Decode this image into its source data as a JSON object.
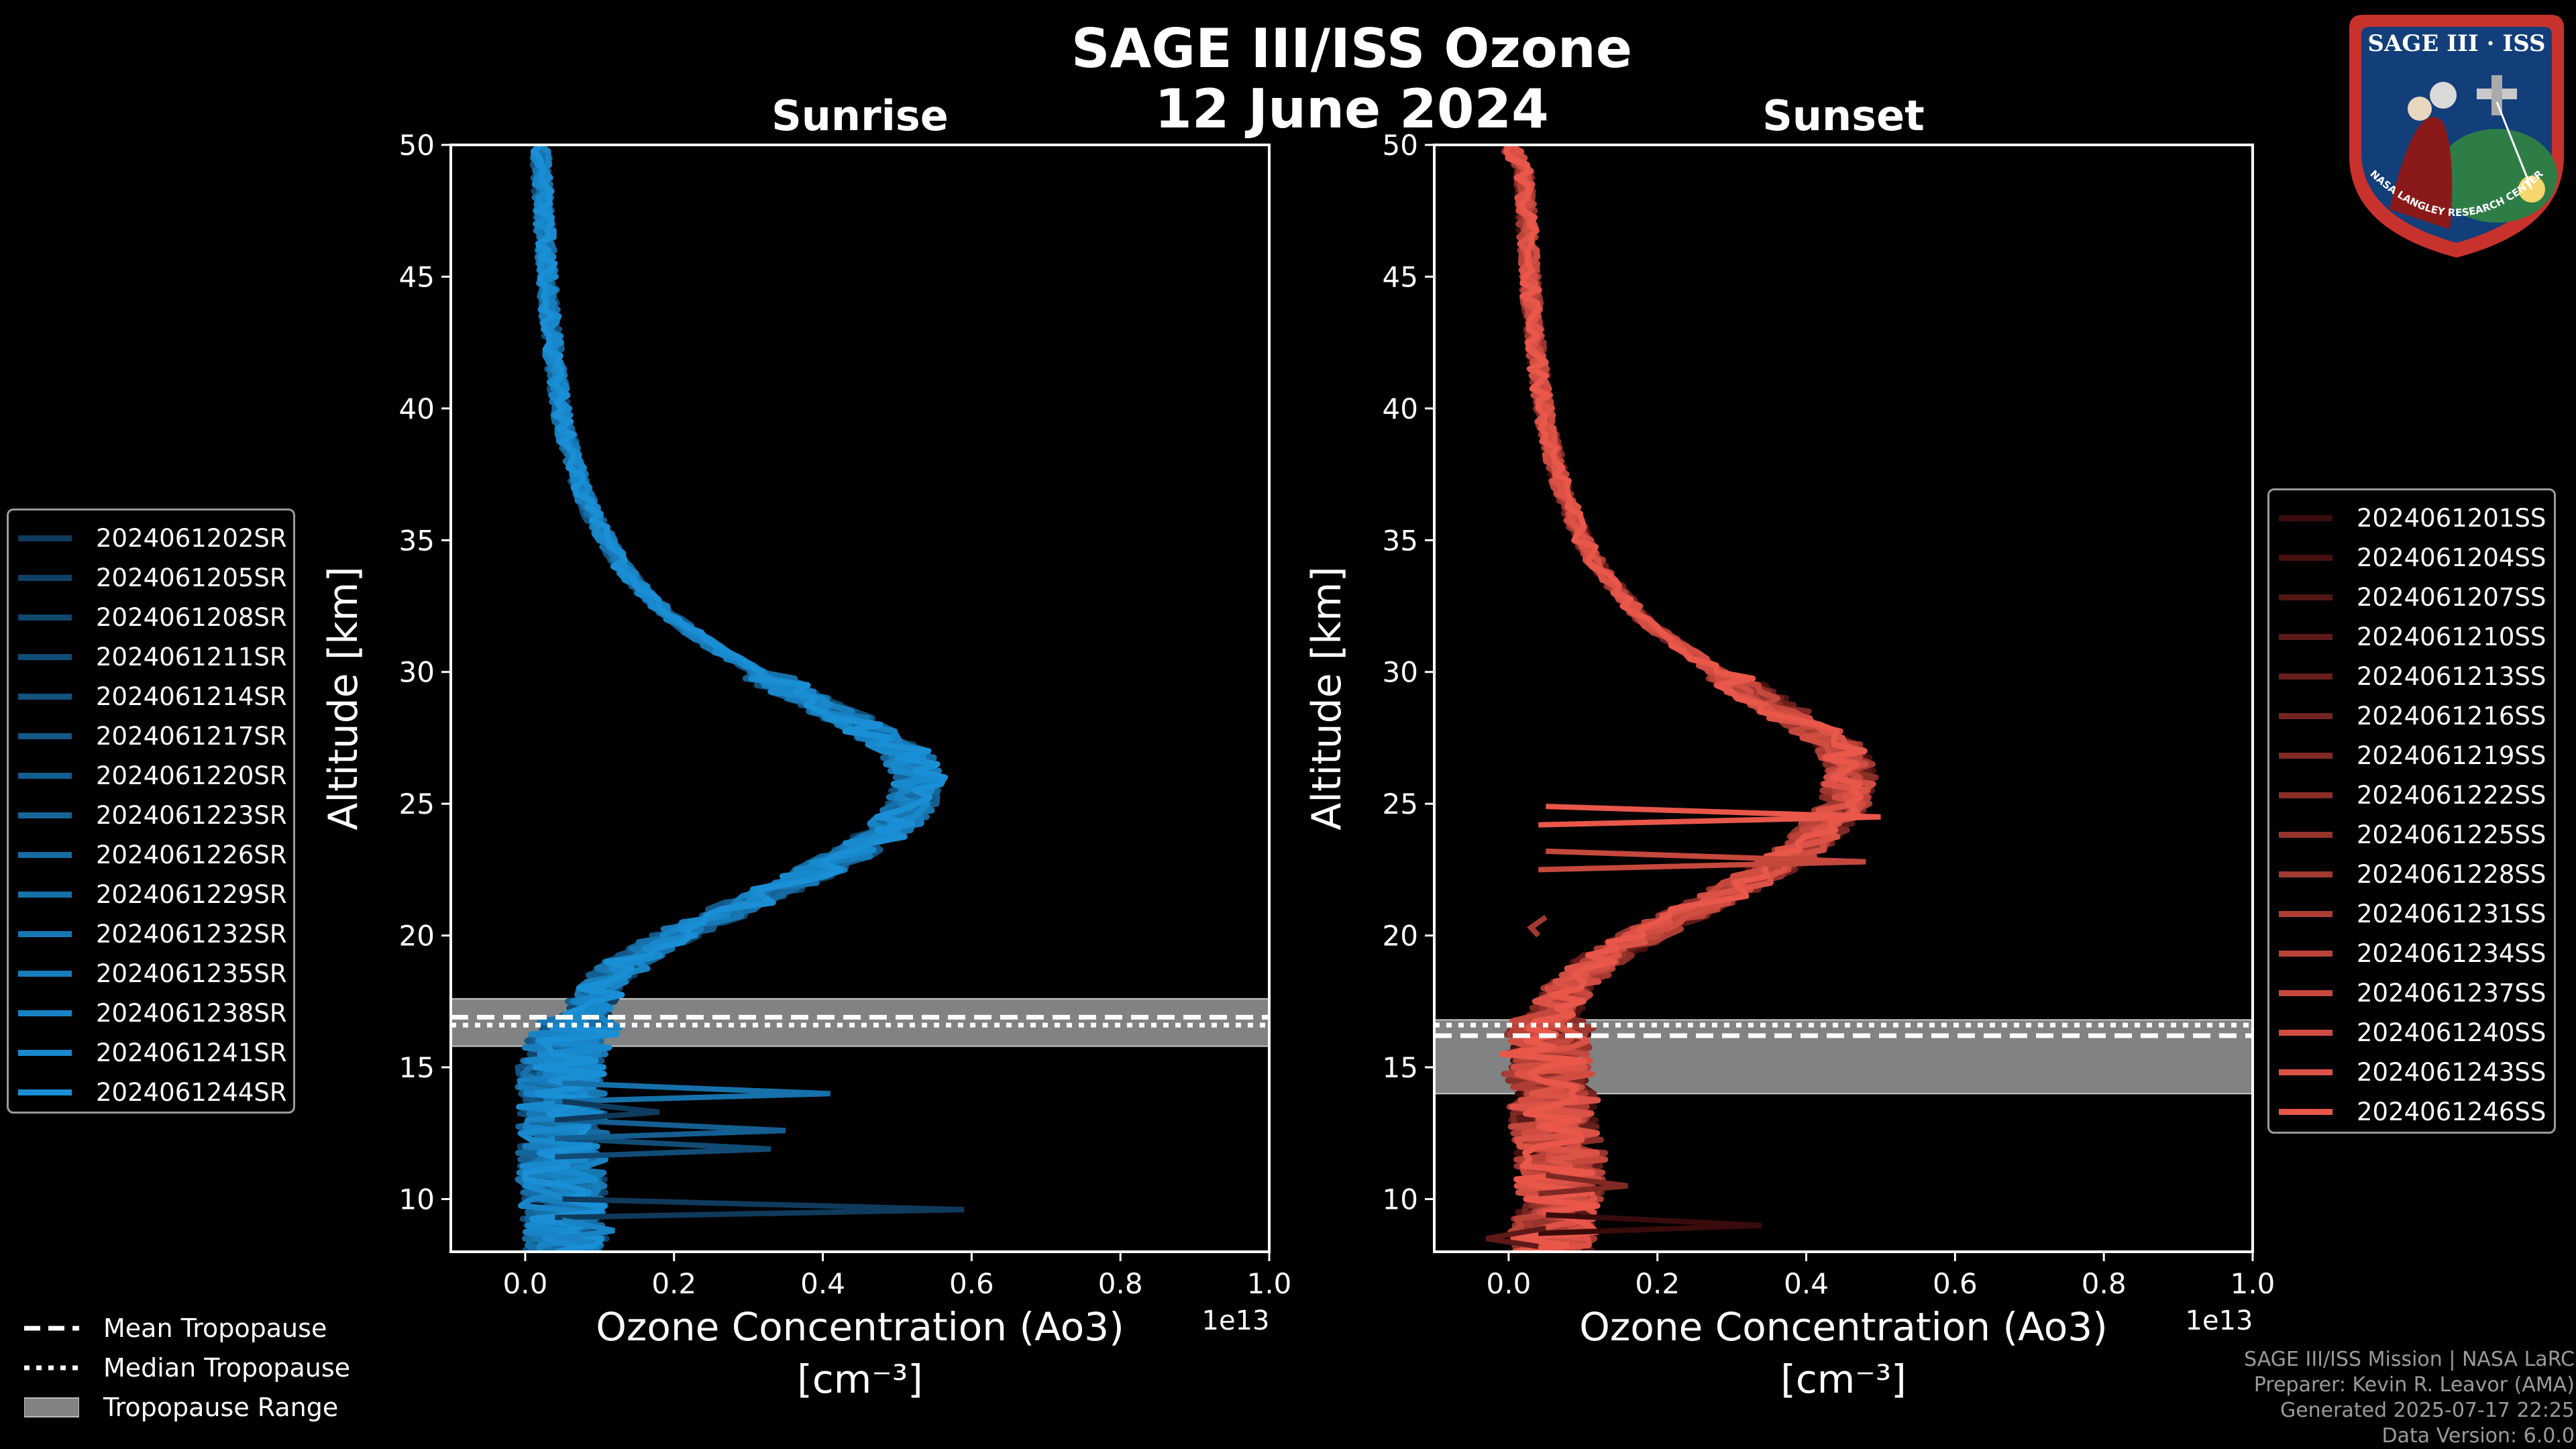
{
  "title": {
    "line1": "SAGE III/ISS Ozone",
    "line2": "12 June 2024"
  },
  "logo": {
    "text": "SAGE III · ISS",
    "ring_text": "NASA LANGLEY RESEARCH CENTER"
  },
  "colors": {
    "sunrise": "#1a8fd6",
    "sunset": "#e8574a",
    "tropo_band": "#808284",
    "background": "#000000"
  },
  "panels": [
    {
      "id": "sunrise",
      "title": "Sunrise",
      "ylabel": "Altitude [km]",
      "xlabel_line1": "Ozone Concentration (Ao3)",
      "xlabel_line2": "[cm⁻³]",
      "offset_label": "1e13",
      "xlim": [
        -0.1,
        1.0
      ],
      "ylim": [
        8,
        50
      ],
      "xticks": [
        "0.0",
        "0.2",
        "0.4",
        "0.6",
        "0.8",
        "1.0"
      ],
      "yticks": [
        "10",
        "15",
        "20",
        "25",
        "30",
        "35",
        "40",
        "45",
        "50"
      ],
      "tropopause": {
        "range": [
          15.8,
          17.6
        ],
        "mean": 16.9,
        "median": 16.6
      }
    },
    {
      "id": "sunset",
      "title": "Sunset",
      "ylabel": "Altitude [km]",
      "xlabel_line1": "Ozone Concentration (Ao3)",
      "xlabel_line2": "[cm⁻³]",
      "offset_label": "1e13",
      "xlim": [
        -0.1,
        1.0
      ],
      "ylim": [
        8,
        50
      ],
      "xticks": [
        "0.0",
        "0.2",
        "0.4",
        "0.6",
        "0.8",
        "1.0"
      ],
      "yticks": [
        "10",
        "15",
        "20",
        "25",
        "30",
        "35",
        "40",
        "45",
        "50"
      ],
      "tropopause": {
        "range": [
          14.0,
          16.8
        ],
        "mean": 16.2,
        "median": 16.6
      }
    }
  ],
  "legend_sunrise": [
    "2024061202SR",
    "2024061205SR",
    "2024061208SR",
    "2024061211SR",
    "2024061214SR",
    "2024061217SR",
    "2024061220SR",
    "2024061223SR",
    "2024061226SR",
    "2024061229SR",
    "2024061232SR",
    "2024061235SR",
    "2024061238SR",
    "2024061241SR",
    "2024061244SR"
  ],
  "legend_sunset": [
    "2024061201SS",
    "2024061204SS",
    "2024061207SS",
    "2024061210SS",
    "2024061213SS",
    "2024061216SS",
    "2024061219SS",
    "2024061222SS",
    "2024061225SS",
    "2024061228SS",
    "2024061231SS",
    "2024061234SS",
    "2024061237SS",
    "2024061240SS",
    "2024061243SS",
    "2024061246SS"
  ],
  "bottom_legend": {
    "mean": "Mean Tropopause",
    "median": "Median Tropopause",
    "range": "Tropopause Range"
  },
  "footer": [
    "SAGE III/ISS Mission | NASA LaRC",
    "Preparer: Kevin R. Leavor (AMA)",
    "Generated 2025-07-17 22:25",
    "Data Version: 6.0.0"
  ],
  "chart_data": {
    "type": "line",
    "units": {
      "x": "1e13 cm^-3",
      "y": "km"
    },
    "base_profile": {
      "altitude": [
        8,
        9,
        10,
        11,
        12,
        13,
        14,
        15,
        16,
        17,
        18,
        19,
        20,
        21,
        22,
        23,
        24,
        25,
        26,
        27,
        28,
        29,
        30,
        31,
        32,
        33,
        34,
        35,
        36,
        37,
        38,
        39,
        40,
        41,
        42,
        43,
        44,
        45,
        46,
        47,
        48,
        49,
        50
      ],
      "sunrise": [
        0.05,
        0.05,
        0.05,
        0.05,
        0.05,
        0.05,
        0.05,
        0.05,
        0.06,
        0.08,
        0.1,
        0.14,
        0.2,
        0.28,
        0.36,
        0.43,
        0.49,
        0.52,
        0.53,
        0.51,
        0.45,
        0.38,
        0.31,
        0.25,
        0.2,
        0.16,
        0.13,
        0.11,
        0.09,
        0.075,
        0.065,
        0.055,
        0.048,
        0.043,
        0.039,
        0.035,
        0.032,
        0.03,
        0.028,
        0.026,
        0.024,
        0.022,
        0.02
      ],
      "sunset": [
        0.06,
        0.06,
        0.07,
        0.07,
        0.07,
        0.06,
        0.06,
        0.05,
        0.05,
        0.06,
        0.08,
        0.12,
        0.18,
        0.25,
        0.32,
        0.38,
        0.42,
        0.45,
        0.46,
        0.45,
        0.4,
        0.34,
        0.28,
        0.23,
        0.18,
        0.15,
        0.12,
        0.1,
        0.085,
        0.072,
        0.062,
        0.054,
        0.047,
        0.042,
        0.038,
        0.034,
        0.031,
        0.029,
        0.027,
        0.025,
        0.023,
        0.021,
        0.0
      ]
    },
    "sunrise_spikes": [
      {
        "altitude": 9.6,
        "value": 0.59
      },
      {
        "altitude": 11.9,
        "value": 0.33
      },
      {
        "altitude": 12.6,
        "value": 0.35
      },
      {
        "altitude": 14.0,
        "value": 0.41
      },
      {
        "altitude": 8.8,
        "value": 0.12
      },
      {
        "altitude": 13.3,
        "value": 0.18
      }
    ],
    "sunset_spikes": [
      {
        "altitude": 9.0,
        "value": 0.34
      },
      {
        "altitude": 8.5,
        "value": -0.03
      },
      {
        "altitude": 10.5,
        "value": 0.16
      },
      {
        "altitude": 20.3,
        "value": 0.03
      },
      {
        "altitude": 22.8,
        "value": 0.48
      },
      {
        "altitude": 24.5,
        "value": 0.5
      }
    ]
  }
}
